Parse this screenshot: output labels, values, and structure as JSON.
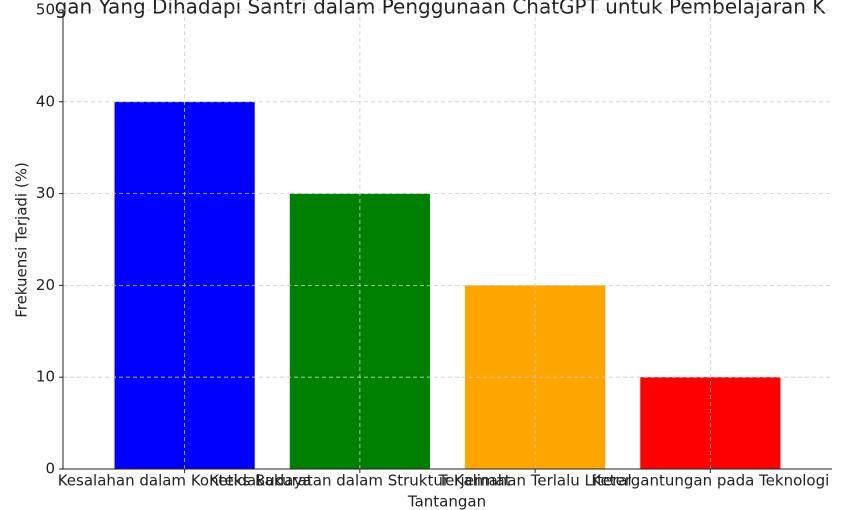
{
  "chart_data": {
    "type": "bar",
    "title": "gan Yang Dihadapi Santri dalam Penggunaan ChatGPT untuk Pembelajaran K",
    "x_label": "Tantangan",
    "y_label": "Frekuensi Terjadi (%)",
    "categories": [
      "Kesalahan dalam Konteks Budaya",
      "Ketidakakuratan dalam Struktur Kalimat",
      "Terjemahan Terlalu Literal",
      "Ketergantungan pada Teknologi"
    ],
    "series": [
      {
        "name": "Frekuensi Terjadi (%)",
        "colors": [
          "#0000ff",
          "#008000",
          "#ffa500",
          "#ff0000"
        ],
        "values": [
          40,
          30,
          20,
          10
        ]
      }
    ],
    "ylim": [
      0,
      50
    ],
    "yticks": [
      0,
      10,
      20,
      30,
      40,
      50
    ],
    "grid": true
  }
}
